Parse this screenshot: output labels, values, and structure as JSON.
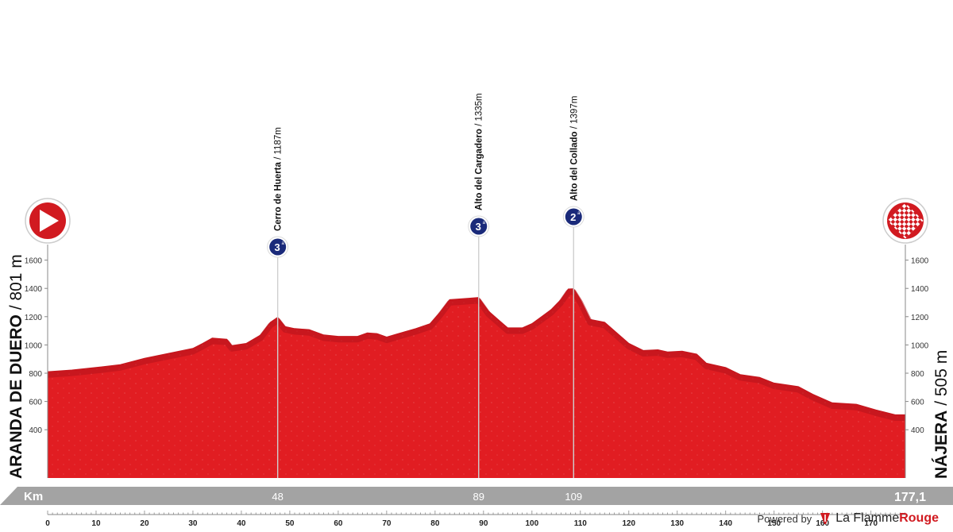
{
  "chart_data": {
    "type": "area",
    "xlabel": "Km",
    "x_end_label": "177,1",
    "x_range": [
      0,
      177.1
    ],
    "y_range": [
      200,
      1800
    ],
    "xticks": [
      0,
      10,
      20,
      30,
      40,
      50,
      60,
      70,
      80,
      90,
      100,
      110,
      120,
      130,
      140,
      150,
      160,
      170
    ],
    "yticks": [
      400,
      600,
      800,
      1000,
      1200,
      1400,
      1600
    ],
    "fill_color": "#e11d22",
    "shade_color": "#b5121b",
    "axis_bar_color": "#a3a3a3",
    "climb_badge_color": "#1a2a7a",
    "start": {
      "name": "ARANDA DE DUERO",
      "elevation_label": "801 m",
      "icon": "play-arrow-icon"
    },
    "finish": {
      "name": "NÁJERA",
      "elevation_label": "505 m",
      "icon": "checkered-flag-icon"
    },
    "climbs": [
      {
        "name": "Cerro de Huerta",
        "altitude": "1187m",
        "km": 47.5,
        "km_label": "48",
        "category": "3"
      },
      {
        "name": "Alto del Cargadero",
        "altitude": "1335m",
        "km": 89,
        "km_label": "89",
        "category": "3"
      },
      {
        "name": "Alto del Collado",
        "altitude": "1397m",
        "km": 108.6,
        "km_label": "109",
        "category": "2"
      }
    ],
    "profile": [
      [
        0,
        810
      ],
      [
        5,
        822
      ],
      [
        10,
        840
      ],
      [
        15,
        860
      ],
      [
        20,
        905
      ],
      [
        25,
        940
      ],
      [
        30,
        975
      ],
      [
        32,
        1010
      ],
      [
        34,
        1048
      ],
      [
        37,
        1040
      ],
      [
        38,
        995
      ],
      [
        41,
        1010
      ],
      [
        44,
        1070
      ],
      [
        46,
        1160
      ],
      [
        47.5,
        1195
      ],
      [
        49,
        1130
      ],
      [
        51,
        1115
      ],
      [
        54,
        1108
      ],
      [
        57,
        1070
      ],
      [
        60,
        1060
      ],
      [
        64,
        1060
      ],
      [
        66,
        1085
      ],
      [
        68,
        1080
      ],
      [
        70,
        1055
      ],
      [
        72,
        1075
      ],
      [
        76,
        1115
      ],
      [
        79,
        1150
      ],
      [
        81,
        1230
      ],
      [
        83,
        1320
      ],
      [
        85,
        1325
      ],
      [
        87,
        1330
      ],
      [
        89,
        1335
      ],
      [
        91,
        1240
      ],
      [
        93,
        1180
      ],
      [
        95,
        1120
      ],
      [
        98,
        1120
      ],
      [
        100,
        1150
      ],
      [
        102,
        1200
      ],
      [
        104,
        1250
      ],
      [
        106,
        1320
      ],
      [
        107.5,
        1395
      ],
      [
        108.6,
        1397
      ],
      [
        110,
        1320
      ],
      [
        112,
        1180
      ],
      [
        115,
        1160
      ],
      [
        118,
        1070
      ],
      [
        120,
        1010
      ],
      [
        123,
        960
      ],
      [
        126,
        965
      ],
      [
        128,
        950
      ],
      [
        131,
        955
      ],
      [
        134,
        935
      ],
      [
        136,
        870
      ],
      [
        140,
        840
      ],
      [
        143,
        790
      ],
      [
        147,
        770
      ],
      [
        150,
        730
      ],
      [
        155,
        705
      ],
      [
        158,
        650
      ],
      [
        162,
        590
      ],
      [
        167,
        580
      ],
      [
        171,
        540
      ],
      [
        175,
        505
      ],
      [
        177.1,
        505
      ]
    ]
  },
  "footer": {
    "powered_by": "Powered by",
    "brand_part1": "La Flamme",
    "brand_part2": "Rouge"
  }
}
